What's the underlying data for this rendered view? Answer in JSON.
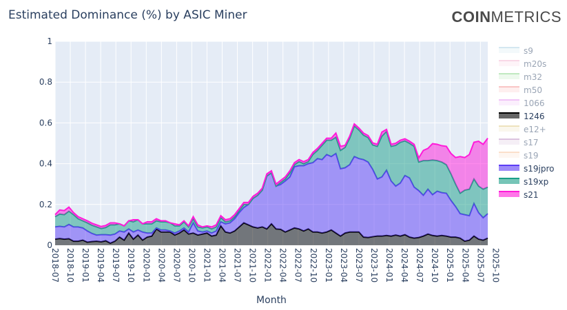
{
  "header": {
    "title": "Estimated Dominance (%) by ASIC Miner",
    "logo_bold": "COIN",
    "logo_light": "METRICS"
  },
  "chart_data": {
    "type": "area",
    "title": "Estimated Dominance (%) by ASIC Miner",
    "xlabel": "Month",
    "ylabel": "",
    "ylim": [
      0,
      1
    ],
    "yticks": [
      0,
      0.2,
      0.4,
      0.6,
      0.8,
      1
    ],
    "ytick_labels": [
      "0",
      "0.2",
      "0.4",
      "0.6",
      "0.8",
      "1"
    ],
    "xtick_labels": [
      "2018-07",
      "2018-10",
      "2019-01",
      "2019-04",
      "2019-07",
      "2019-10",
      "2020-01",
      "2020-04",
      "2020-07",
      "2020-10",
      "2021-01",
      "2021-04",
      "2021-07",
      "2021-10",
      "2022-01",
      "2022-04",
      "2022-07",
      "2022-10",
      "2023-01",
      "2023-04",
      "2023-07",
      "2023-10",
      "2024-01",
      "2024-04",
      "2024-07",
      "2024-10",
      "2025-01",
      "2025-04",
      "2025-07",
      "2025-10"
    ],
    "grid": true,
    "stacked": true,
    "legend_position": "right",
    "legend": [
      {
        "name": "s9",
        "color": "#9ecae1",
        "visible": false
      },
      {
        "name": "m20s",
        "color": "#f4a6c8",
        "visible": false
      },
      {
        "name": "m32",
        "color": "#6fcf6f",
        "visible": false
      },
      {
        "name": "m50",
        "color": "#f47c7c",
        "visible": false
      },
      {
        "name": "1066",
        "color": "#e27bf0",
        "visible": false
      },
      {
        "name": "1246",
        "color": "#000000",
        "visible": true
      },
      {
        "name": "e12+",
        "color": "#d9bf6a",
        "visible": false
      },
      {
        "name": "s17",
        "color": "#b07ab8",
        "visible": false
      },
      {
        "name": "s19",
        "color": "#f8b88b",
        "visible": false
      },
      {
        "name": "s19jpro",
        "color": "#5b3cf5",
        "visible": true
      },
      {
        "name": "s19xp",
        "color": "#1a9e87",
        "visible": true
      },
      {
        "name": "s21",
        "color": "#ff1ad9",
        "visible": true
      }
    ],
    "series": [
      {
        "name": "1246",
        "values": [
          0.03,
          0.033,
          0.03,
          0.032,
          0.02,
          0.02,
          0.025,
          0.015,
          0.018,
          0.02,
          0.017,
          0.022,
          0.01,
          0.02,
          0.04,
          0.025,
          0.06,
          0.03,
          0.05,
          0.025,
          0.04,
          0.045,
          0.08,
          0.065,
          0.065,
          0.065,
          0.05,
          0.06,
          0.075,
          0.055,
          0.06,
          0.05,
          0.055,
          0.06,
          0.045,
          0.05,
          0.095,
          0.065,
          0.06,
          0.07,
          0.09,
          0.11,
          0.1,
          0.09,
          0.085,
          0.09,
          0.08,
          0.105,
          0.08,
          0.078,
          0.065,
          0.075,
          0.085,
          0.08,
          0.07,
          0.08,
          0.065,
          0.065,
          0.06,
          0.065,
          0.075,
          0.06,
          0.045,
          0.06,
          0.065,
          0.065,
          0.065,
          0.04,
          0.038,
          0.042,
          0.045,
          0.045,
          0.048,
          0.045,
          0.05,
          0.045,
          0.052,
          0.04,
          0.035,
          0.038,
          0.045,
          0.055,
          0.048,
          0.045,
          0.048,
          0.045,
          0.04,
          0.04,
          0.035,
          0.02,
          0.025,
          0.045,
          0.03,
          0.025,
          0.035
        ]
      },
      {
        "name": "s19jpro",
        "values": [
          0.06,
          0.06,
          0.06,
          0.07,
          0.07,
          0.07,
          0.06,
          0.055,
          0.04,
          0.03,
          0.035,
          0.03,
          0.04,
          0.035,
          0.03,
          0.04,
          0.02,
          0.035,
          0.025,
          0.04,
          0.02,
          0.015,
          0.005,
          0.01,
          0.01,
          0.005,
          0.01,
          0.01,
          0.01,
          0.01,
          0.05,
          0.02,
          0.01,
          0.01,
          0.015,
          0.02,
          0.02,
          0.04,
          0.05,
          0.06,
          0.07,
          0.075,
          0.1,
          0.14,
          0.16,
          0.18,
          0.26,
          0.25,
          0.21,
          0.22,
          0.25,
          0.26,
          0.3,
          0.31,
          0.32,
          0.32,
          0.34,
          0.36,
          0.36,
          0.38,
          0.36,
          0.39,
          0.33,
          0.32,
          0.33,
          0.37,
          0.36,
          0.38,
          0.37,
          0.33,
          0.28,
          0.29,
          0.32,
          0.27,
          0.24,
          0.26,
          0.29,
          0.29,
          0.25,
          0.23,
          0.2,
          0.22,
          0.2,
          0.22,
          0.21,
          0.21,
          0.18,
          0.15,
          0.12,
          0.13,
          0.12,
          0.16,
          0.13,
          0.11,
          0.12
        ]
      },
      {
        "name": "s19xp",
        "values": [
          0.05,
          0.06,
          0.06,
          0.065,
          0.06,
          0.04,
          0.035,
          0.04,
          0.04,
          0.04,
          0.03,
          0.035,
          0.05,
          0.045,
          0.035,
          0.03,
          0.04,
          0.05,
          0.05,
          0.04,
          0.045,
          0.045,
          0.035,
          0.04,
          0.04,
          0.04,
          0.035,
          0.025,
          0.03,
          0.025,
          0.02,
          0.02,
          0.02,
          0.02,
          0.02,
          0.02,
          0.02,
          0.01,
          0.01,
          0.01,
          0.01,
          0.015,
          0.0,
          0.0,
          0.0,
          0.0,
          0.0,
          0.0,
          0.0,
          0.01,
          0.01,
          0.02,
          0.01,
          0.02,
          0.01,
          0.01,
          0.04,
          0.04,
          0.07,
          0.07,
          0.08,
          0.08,
          0.09,
          0.1,
          0.13,
          0.15,
          0.14,
          0.12,
          0.12,
          0.12,
          0.16,
          0.2,
          0.19,
          0.17,
          0.2,
          0.2,
          0.17,
          0.17,
          0.2,
          0.14,
          0.17,
          0.14,
          0.17,
          0.15,
          0.15,
          0.14,
          0.13,
          0.11,
          0.1,
          0.12,
          0.13,
          0.12,
          0.13,
          0.14,
          0.13
        ]
      },
      {
        "name": "s21",
        "values": [
          0.01,
          0.02,
          0.02,
          0.02,
          0.01,
          0.01,
          0.01,
          0.01,
          0.01,
          0.01,
          0.01,
          0.01,
          0.01,
          0.01,
          0.0,
          0.0,
          0.0,
          0.01,
          0.0,
          0.0,
          0.01,
          0.01,
          0.01,
          0.005,
          0.005,
          0.0,
          0.01,
          0.005,
          0.005,
          0.005,
          0.01,
          0.01,
          0.005,
          0.005,
          0.01,
          0.01,
          0.01,
          0.01,
          0.01,
          0.01,
          0.01,
          0.01,
          0.01,
          0.01,
          0.01,
          0.01,
          0.01,
          0.01,
          0.01,
          0.01,
          0.01,
          0.01,
          0.01,
          0.01,
          0.01,
          0.01,
          0.01,
          0.01,
          0.01,
          0.01,
          0.01,
          0.02,
          0.02,
          0.01,
          0.01,
          0.01,
          0.01,
          0.01,
          0.01,
          0.01,
          0.01,
          0.02,
          0.01,
          0.01,
          0.01,
          0.01,
          0.01,
          0.01,
          0.01,
          0.02,
          0.05,
          0.06,
          0.08,
          0.08,
          0.08,
          0.09,
          0.1,
          0.13,
          0.18,
          0.16,
          0.17,
          0.18,
          0.22,
          0.22,
          0.24
        ]
      }
    ]
  }
}
